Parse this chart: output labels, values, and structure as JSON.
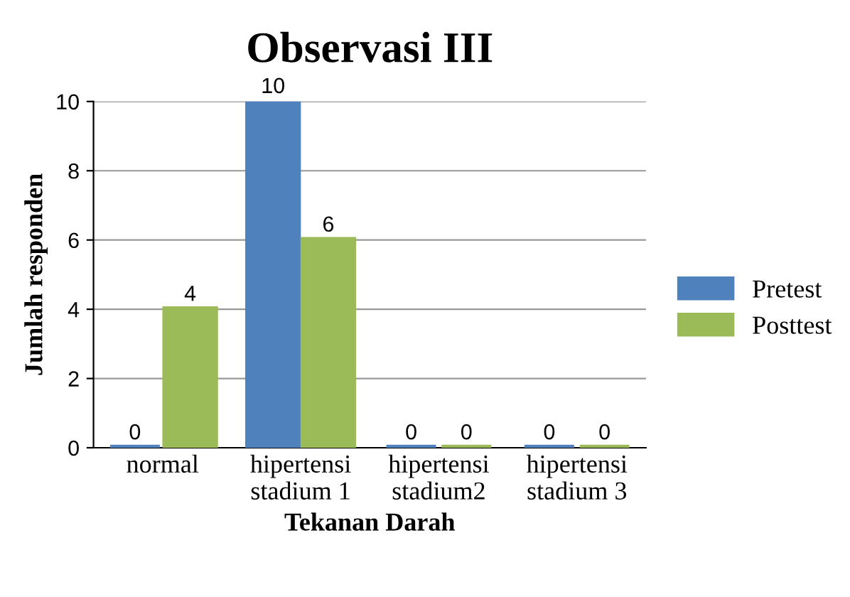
{
  "chart_data": {
    "type": "bar",
    "title": "Observasi III",
    "xlabel": "Tekanan Darah",
    "ylabel": "Jumlah responden",
    "categories": [
      "normal",
      "hipertensi\nstadium 1",
      "hipertensi\nstadium2",
      "hipertensi\nstadium 3"
    ],
    "series": [
      {
        "name": "Pretest",
        "color": "#4f81bd",
        "values": [
          0,
          10,
          0,
          0
        ]
      },
      {
        "name": "Posttest",
        "color": "#9bbb59",
        "values": [
          4,
          6,
          0,
          0
        ]
      }
    ],
    "ylim": [
      0,
      10
    ],
    "yticks": [
      0,
      2,
      4,
      6,
      8,
      10
    ],
    "grid": "y",
    "legend": "right",
    "data_labels": true
  }
}
